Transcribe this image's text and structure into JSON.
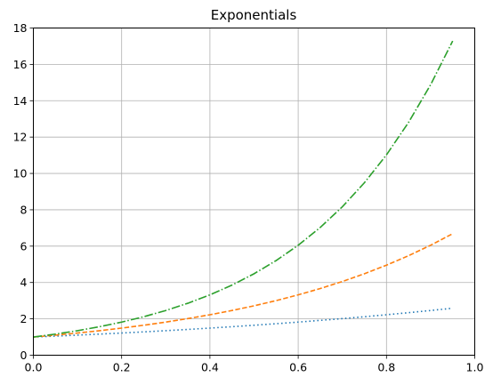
{
  "chart_data": {
    "type": "line",
    "title": "Exponentials",
    "xlabel": "",
    "ylabel": "",
    "xlim": [
      0,
      1
    ],
    "ylim": [
      0,
      18
    ],
    "x_ticks": [
      0.0,
      0.2,
      0.4,
      0.6,
      0.8,
      1.0
    ],
    "x_tick_labels": [
      "0.0",
      "0.2",
      "0.4",
      "0.6",
      "0.8",
      "1.0"
    ],
    "y_ticks": [
      0,
      2,
      4,
      6,
      8,
      10,
      12,
      14,
      16,
      18
    ],
    "y_tick_labels": [
      "0",
      "2",
      "4",
      "6",
      "8",
      "10",
      "12",
      "14",
      "16",
      "18"
    ],
    "grid": true,
    "x": [
      0.0,
      0.05,
      0.1,
      0.15,
      0.2,
      0.25,
      0.3,
      0.35,
      0.4,
      0.45,
      0.5,
      0.55,
      0.6,
      0.65,
      0.7,
      0.75,
      0.8,
      0.85,
      0.9,
      0.95
    ],
    "series": [
      {
        "style": "dotted",
        "color": "#1f77b4",
        "values": [
          1.0,
          1.051,
          1.105,
          1.162,
          1.221,
          1.284,
          1.35,
          1.419,
          1.492,
          1.568,
          1.649,
          1.733,
          1.822,
          1.916,
          2.014,
          2.117,
          2.226,
          2.34,
          2.46,
          2.586
        ]
      },
      {
        "style": "dashed",
        "color": "#ff7f0e",
        "values": [
          1.0,
          1.105,
          1.221,
          1.35,
          1.492,
          1.649,
          1.822,
          2.014,
          2.226,
          2.46,
          2.718,
          3.004,
          3.32,
          3.669,
          4.055,
          4.482,
          4.953,
          5.474,
          6.05,
          6.686
        ]
      },
      {
        "style": "dashdot",
        "color": "#2ca02c",
        "values": [
          1.0,
          1.162,
          1.35,
          1.568,
          1.822,
          2.117,
          2.46,
          2.858,
          3.32,
          3.857,
          4.482,
          5.207,
          6.05,
          7.029,
          8.166,
          9.488,
          11.023,
          12.807,
          14.88,
          17.288
        ]
      }
    ]
  }
}
